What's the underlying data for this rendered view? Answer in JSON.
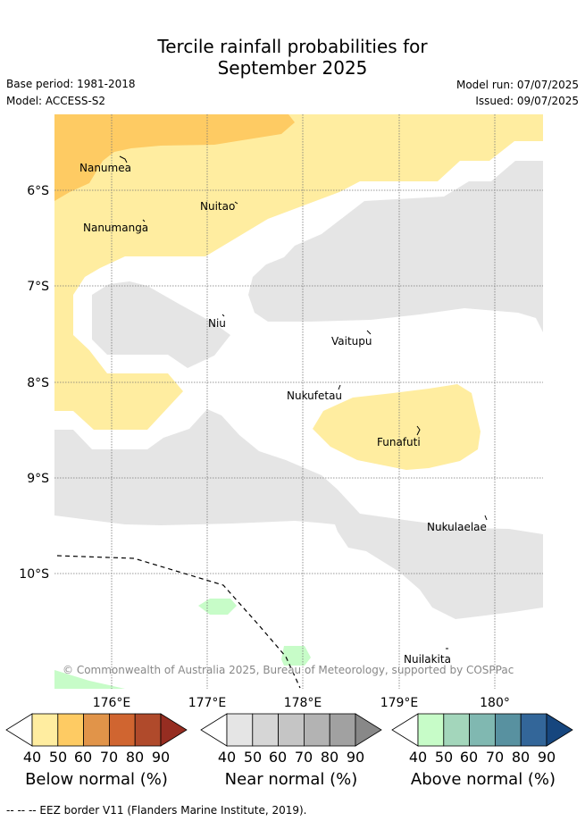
{
  "title": {
    "line1": "Tercile rainfall probabilities for",
    "line2": "September 2025"
  },
  "meta": {
    "base_period": "Base period: 1981-2018",
    "model": "Model: ACCESS-S2",
    "model_run": "Model run: 07/07/2025",
    "issued": "Issued: 09/07/2025"
  },
  "map": {
    "lat_labels": [
      "6°S",
      "7°S",
      "8°S",
      "9°S",
      "10°S"
    ],
    "lon_labels": [
      "176°E",
      "177°E",
      "178°E",
      "179°E",
      "180°"
    ],
    "islands": [
      "Nanumea",
      "Nuitao",
      "Nanumanga",
      "Niu",
      "Vaitupu",
      "Nukufetau",
      "Funafuti",
      "Nukulaelae",
      "Nuilakita"
    ],
    "copyright": "© Commonwealth of Australia 2025, Bureau of Meteorology, supported by COSPPac",
    "colors": {
      "below_40": "#ffeda0",
      "below_50": "#fecb63",
      "near_40": "#e5e5e5",
      "above_40": "#c7fcc8",
      "grid": "#777777"
    }
  },
  "legends": [
    {
      "name": "Below normal (%)",
      "ticks": [
        "40",
        "50",
        "60",
        "70",
        "80",
        "90"
      ],
      "colors": [
        "#ffeda0",
        "#fecb63",
        "#e19449",
        "#d06530",
        "#b04a2b",
        "#962d21"
      ]
    },
    {
      "name": "Near normal (%)",
      "ticks": [
        "40",
        "50",
        "60",
        "70",
        "80",
        "90"
      ],
      "colors": [
        "#e5e5e5",
        "#d6d6d6",
        "#c5c5c5",
        "#b3b3b3",
        "#a1a1a1",
        "#888888"
      ]
    },
    {
      "name": "Above normal (%)",
      "ticks": [
        "40",
        "50",
        "60",
        "70",
        "80",
        "90"
      ],
      "colors": [
        "#c7fcc8",
        "#a3d6bb",
        "#80b8b1",
        "#5891a0",
        "#336699",
        "#16467e"
      ]
    }
  ],
  "footnote": "-- -- -- EEZ border V11 (Flanders Marine Institute, 2019)."
}
